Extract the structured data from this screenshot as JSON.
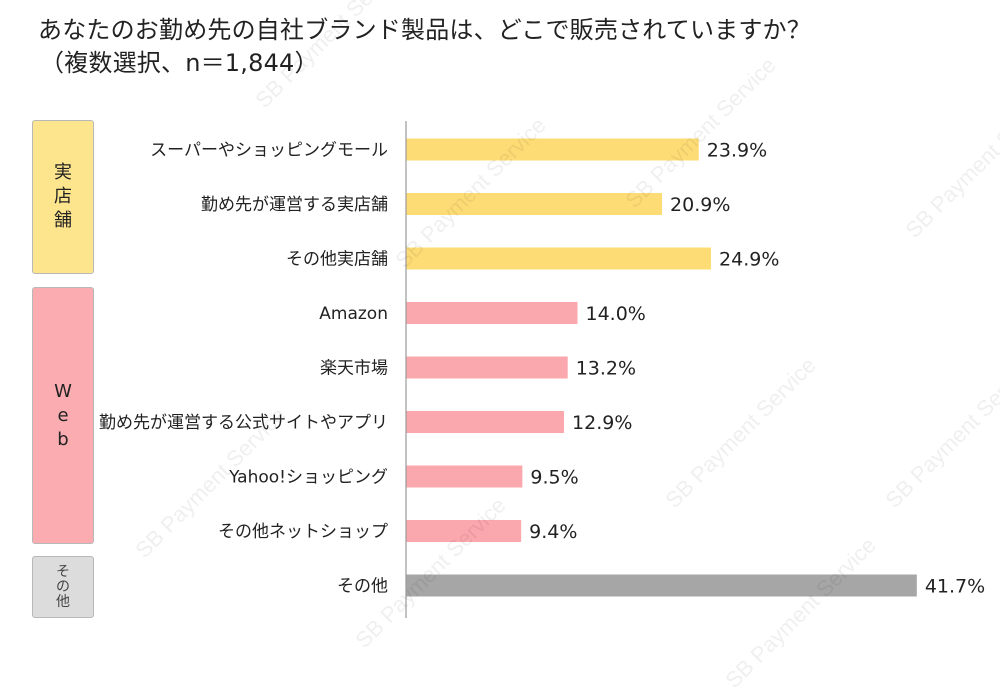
{
  "title": {
    "line1": "あなたのお勤め先の自社ブランド製品は、どこで販売されていますか？",
    "line2": "（複数選択、n＝1,844）"
  },
  "groups": [
    {
      "label": "実店舗",
      "color": "#fde58d",
      "rows": [
        0,
        2
      ]
    },
    {
      "label": "Web",
      "color": "#fbacb1",
      "rows": [
        3,
        7
      ]
    },
    {
      "label": "その他",
      "color": "#dcdcdc",
      "rows": [
        8,
        8
      ]
    }
  ],
  "watermark": "SB Payment Service",
  "chart_data": {
    "type": "bar",
    "orientation": "horizontal",
    "categories": [
      "スーパーやショッピングモール",
      "勤め先が運営する実店舗",
      "その他実店舗",
      "Amazon",
      "楽天市場",
      "勤め先が運営する公式サイトやアプリ",
      "Yahoo!ショッピング",
      "その他ネットショップ",
      "その他"
    ],
    "values": [
      23.9,
      20.9,
      24.9,
      14.0,
      13.2,
      12.9,
      9.5,
      9.4,
      41.7
    ],
    "labels": [
      "23.9%",
      "20.9%",
      "24.9%",
      "14.0%",
      "13.2%",
      "12.9%",
      "9.5%",
      "9.4%",
      "41.7%"
    ],
    "bar_colors": [
      "#fddc75",
      "#fddc75",
      "#fddc75",
      "#fba7ae",
      "#fba7ae",
      "#fba7ae",
      "#fba7ae",
      "#fba7ae",
      "#a6a6a6"
    ],
    "xlim": [
      0,
      45
    ],
    "grid": false,
    "axis_color": "#9a9a9a"
  }
}
